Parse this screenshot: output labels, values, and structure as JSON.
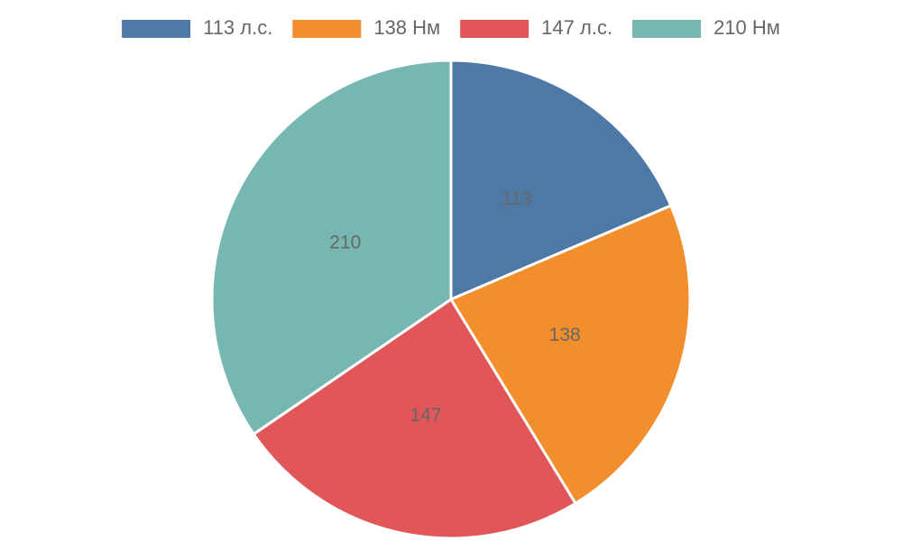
{
  "chart_data": {
    "type": "pie",
    "categories": [
      "113 л.с.",
      "138 Нм",
      "147 л.с.",
      "210 Нм"
    ],
    "values": [
      113,
      138,
      147,
      210
    ],
    "colors": [
      "#4e79a7",
      "#f28e2b",
      "#e15759",
      "#76b7b2"
    ],
    "legend": "top"
  }
}
